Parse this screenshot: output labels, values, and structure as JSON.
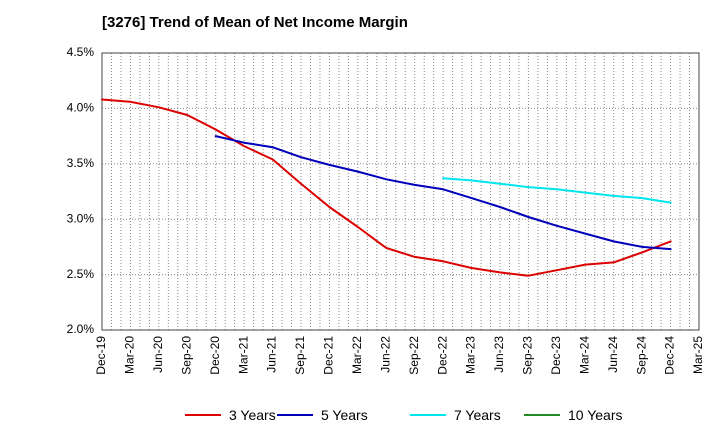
{
  "chart_data": {
    "type": "line",
    "title": "[3276]  Trend of Mean of Net Income Margin",
    "xlabel": "",
    "ylabel": "",
    "ylim": [
      2.0,
      4.5
    ],
    "y_ticks": [
      "2.0%",
      "2.5%",
      "3.0%",
      "3.5%",
      "4.0%",
      "4.5%"
    ],
    "y_tick_values": [
      2.0,
      2.5,
      3.0,
      3.5,
      4.0,
      4.5
    ],
    "x_ticks": [
      "Dec-19",
      "Mar-20",
      "Jun-20",
      "Sep-20",
      "Dec-20",
      "Mar-21",
      "Jun-21",
      "Sep-21",
      "Dec-21",
      "Mar-22",
      "Jun-22",
      "Sep-22",
      "Dec-22",
      "Mar-23",
      "Jun-23",
      "Sep-23",
      "Dec-23",
      "Mar-24",
      "Jun-24",
      "Sep-24",
      "Dec-24",
      "Mar-25"
    ],
    "grid": true,
    "legend_position": "bottom",
    "series": [
      {
        "name": "3 Years",
        "color": "#dd0000",
        "points": [
          [
            "Dec-19",
            4.08
          ],
          [
            "Mar-20",
            4.06
          ],
          [
            "Jun-20",
            4.01
          ],
          [
            "Sep-20",
            3.94
          ],
          [
            "Dec-20",
            3.81
          ],
          [
            "Mar-21",
            3.66
          ],
          [
            "Jun-21",
            3.54
          ],
          [
            "Sep-21",
            3.32
          ],
          [
            "Dec-21",
            3.11
          ],
          [
            "Mar-22",
            2.93
          ],
          [
            "Jun-22",
            2.74
          ],
          [
            "Sep-22",
            2.66
          ],
          [
            "Dec-22",
            2.62
          ],
          [
            "Mar-23",
            2.56
          ],
          [
            "Jun-23",
            2.52
          ],
          [
            "Sep-23",
            2.49
          ],
          [
            "Dec-23",
            2.54
          ],
          [
            "Mar-24",
            2.59
          ],
          [
            "Jun-24",
            2.61
          ],
          [
            "Sep-24",
            2.7
          ],
          [
            "Dec-24",
            2.8
          ]
        ]
      },
      {
        "name": "5 Years",
        "color": "#0000bb",
        "points": [
          [
            "Dec-20",
            3.75
          ],
          [
            "Mar-21",
            3.69
          ],
          [
            "Jun-21",
            3.65
          ],
          [
            "Sep-21",
            3.56
          ],
          [
            "Dec-21",
            3.49
          ],
          [
            "Mar-22",
            3.43
          ],
          [
            "Jun-22",
            3.36
          ],
          [
            "Sep-22",
            3.31
          ],
          [
            "Dec-22",
            3.27
          ],
          [
            "Mar-23",
            3.19
          ],
          [
            "Jun-23",
            3.11
          ],
          [
            "Sep-23",
            3.02
          ],
          [
            "Dec-23",
            2.94
          ],
          [
            "Mar-24",
            2.87
          ],
          [
            "Jun-24",
            2.8
          ],
          [
            "Sep-24",
            2.75
          ],
          [
            "Dec-24",
            2.73
          ]
        ]
      },
      {
        "name": "7 Years",
        "color": "#00e5ee",
        "points": [
          [
            "Dec-22",
            3.37
          ],
          [
            "Mar-23",
            3.35
          ],
          [
            "Jun-23",
            3.32
          ],
          [
            "Sep-23",
            3.29
          ],
          [
            "Dec-23",
            3.27
          ],
          [
            "Mar-24",
            3.24
          ],
          [
            "Jun-24",
            3.21
          ],
          [
            "Sep-24",
            3.19
          ],
          [
            "Dec-24",
            3.15
          ]
        ]
      },
      {
        "name": "10 Years",
        "color": "#228b22",
        "points": []
      }
    ]
  }
}
